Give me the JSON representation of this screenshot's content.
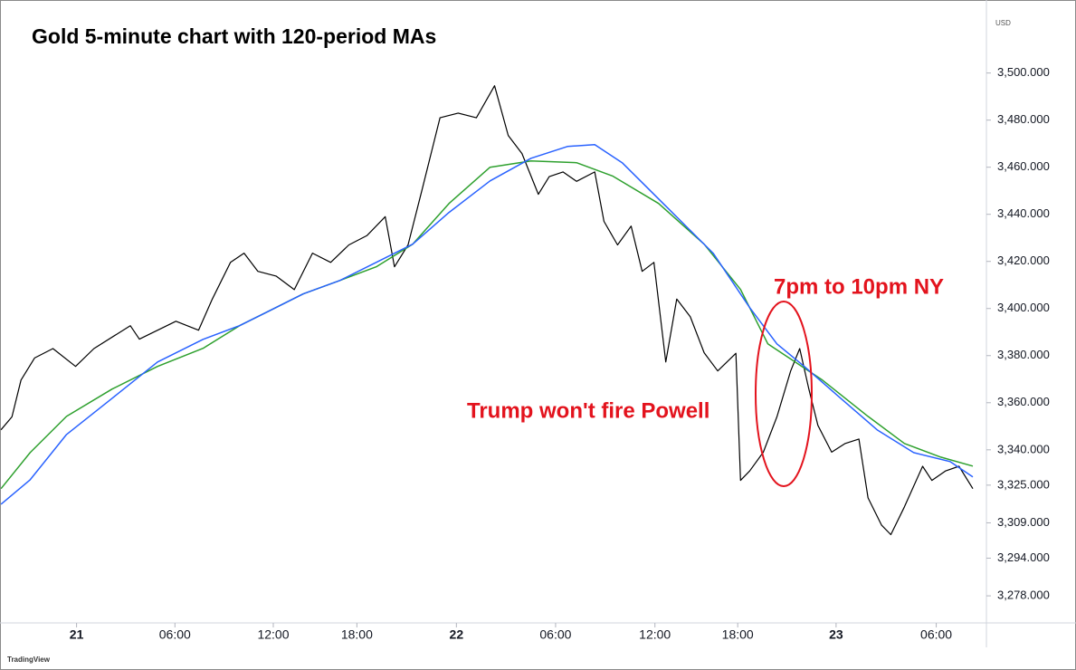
{
  "chart_data": {
    "type": "line",
    "title": "Gold 5-minute chart with 120-period MAs",
    "annotations": [
      "7pm to 10pm NY",
      "Trump won't fire Powell"
    ],
    "currency": "USD",
    "source": "TradingView",
    "xlim": [
      -4.67,
      55.5
    ],
    "ylim": [
      3266.5,
      3531
    ],
    "xticks": [
      {
        "value": 0,
        "label": "21"
      },
      {
        "value": 6,
        "label": "06:00"
      },
      {
        "value": 12,
        "label": "12:00"
      },
      {
        "value": 17.1,
        "label": "18:00"
      },
      {
        "value": 23.17,
        "label": "22"
      },
      {
        "value": 29.22,
        "label": "06:00"
      },
      {
        "value": 35.28,
        "label": "12:00"
      },
      {
        "value": 40.33,
        "label": "18:00"
      },
      {
        "value": 46.33,
        "label": "23"
      },
      {
        "value": 52.44,
        "label": "06:00"
      }
    ],
    "yticks": [
      {
        "value": 3278,
        "label": "3,278.000"
      },
      {
        "value": 3294,
        "label": "3,294.000"
      },
      {
        "value": 3309,
        "label": "3,309.000"
      },
      {
        "value": 3325,
        "label": "3,325.000"
      },
      {
        "value": 3340,
        "label": "3,340.000"
      },
      {
        "value": 3360,
        "label": "3,360.000"
      },
      {
        "value": 3380,
        "label": "3,380.000"
      },
      {
        "value": 3400,
        "label": "3,400.000"
      },
      {
        "value": 3420,
        "label": "3,420.000"
      },
      {
        "value": 3440,
        "label": "3,440.000"
      },
      {
        "value": 3460,
        "label": "3,460.000"
      },
      {
        "value": 3480,
        "label": "3,480.000"
      },
      {
        "value": 3500,
        "label": "3,500.000"
      }
    ],
    "series": [
      {
        "color": "#000000",
        "width": 1.2,
        "x": [
          -4.61,
          -3.94,
          -3.39,
          -2.56,
          -1.44,
          -0.06,
          1.06,
          3.28,
          3.83,
          6.06,
          7.44,
          8.28,
          9.39,
          10.22,
          11.06,
          12.17,
          13.28,
          14.39,
          15.5,
          16.61,
          17.72,
          18.83,
          19.39,
          20.22,
          21.06,
          22.17,
          23.28,
          24.39,
          25.5,
          26.33,
          27.17,
          28.17,
          28.83,
          29.67,
          30.5,
          31.61,
          32.17,
          33,
          33.83,
          34.5,
          35.22,
          35.94,
          36.61,
          37.44,
          38.28,
          39.11,
          40.22,
          40.5,
          41.06,
          41.89,
          42.72,
          43.56,
          44.11,
          44.67,
          45.22,
          46.06,
          46.89,
          47.72,
          48.28,
          49.11,
          49.67,
          50.5,
          51.61,
          52.17,
          53,
          53.83,
          54.67
        ],
        "values": [
          3348.5,
          3354,
          3369.6,
          3379,
          3383,
          3375.4,
          3383,
          3392.7,
          3387,
          3394.6,
          3390.8,
          3404,
          3419.6,
          3423.5,
          3415.8,
          3413.8,
          3408,
          3423.5,
          3419.6,
          3427,
          3431,
          3439,
          3417.7,
          3427,
          3450,
          3481,
          3483,
          3481,
          3494.6,
          3473.5,
          3465.8,
          3448.5,
          3456,
          3458,
          3454,
          3458,
          3437,
          3427,
          3435,
          3415.8,
          3419.6,
          3377.3,
          3404,
          3396.5,
          3381.2,
          3373.5,
          3381,
          3327,
          3331,
          3339,
          3354,
          3373.5,
          3383,
          3365.8,
          3350.4,
          3339,
          3342.7,
          3344.6,
          3319.6,
          3308,
          3304,
          3315.8,
          3333,
          3327,
          3331,
          3333,
          3323.5
        ]
      },
      {
        "color": "#2ea02e",
        "width": 1.5,
        "x": [
          -4.61,
          -2.83,
          -0.61,
          2.17,
          4.94,
          7.72,
          9.94,
          11.61,
          13.83,
          16.06,
          18.28,
          20.5,
          22.72,
          25.22,
          27.72,
          30.5,
          32.72,
          35.5,
          38.28,
          40.5,
          42.17,
          43.83,
          45.5,
          48.28,
          50.5,
          52.72,
          54.67
        ],
        "values": [
          3323.5,
          3338.8,
          3354.2,
          3365.8,
          3375.4,
          3383.1,
          3392.7,
          3398.5,
          3406.2,
          3411.9,
          3417.7,
          3427.3,
          3444.6,
          3460,
          3462.7,
          3461.9,
          3456.2,
          3444.6,
          3427.3,
          3408.1,
          3385,
          3377.3,
          3369.6,
          3354.2,
          3342.7,
          3336.9,
          3333.1
        ]
      },
      {
        "color": "#2962ff",
        "width": 1.5,
        "x": [
          -4.61,
          -2.83,
          -0.61,
          2.17,
          4.94,
          7.72,
          9.94,
          11.61,
          13.83,
          16.06,
          18.28,
          20.5,
          22.72,
          25.22,
          27.72,
          29.94,
          31.61,
          33.28,
          36.06,
          38.83,
          41.06,
          42.72,
          44.39,
          46.61,
          48.83,
          51.06,
          53.28,
          54.67
        ],
        "values": [
          3316.9,
          3327.3,
          3346.5,
          3361.9,
          3377.3,
          3386.9,
          3392.7,
          3398.5,
          3406.2,
          3411.9,
          3419.6,
          3427.3,
          3440.8,
          3454.2,
          3463.8,
          3468.8,
          3469.6,
          3461.9,
          3442.7,
          3423.5,
          3400.4,
          3385,
          3375.4,
          3361.9,
          3348.5,
          3338.8,
          3335,
          3328.5
        ]
      }
    ]
  }
}
